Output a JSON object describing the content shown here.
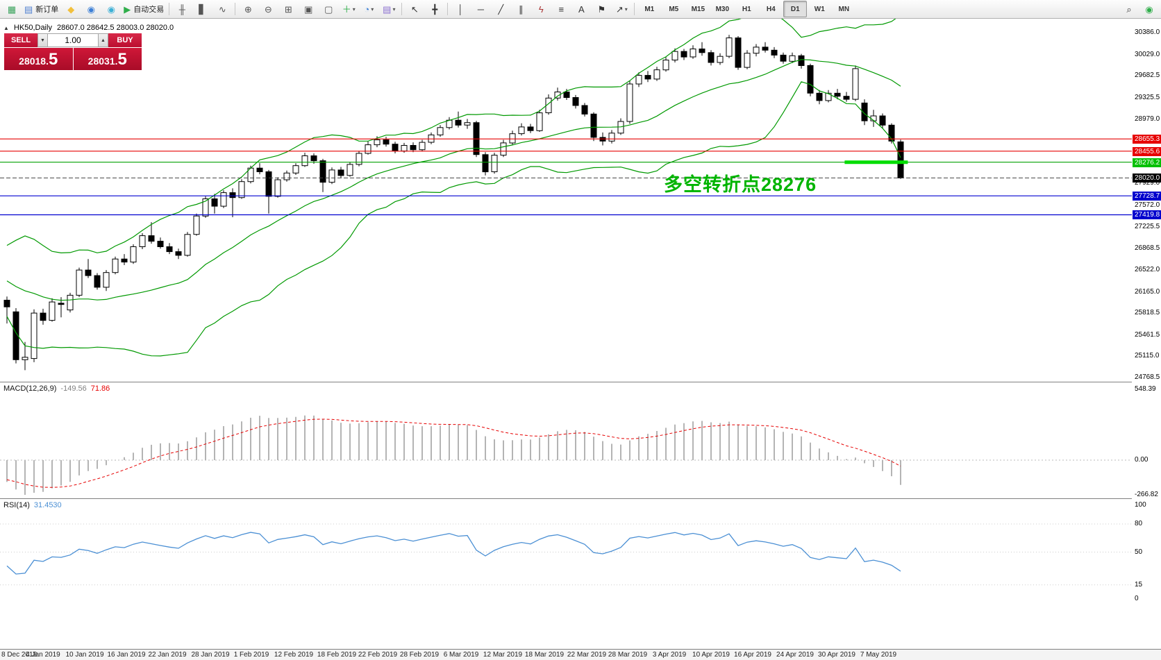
{
  "toolbar": {
    "buttons": [
      {
        "name": "terminal-chart-button",
        "glyph": "▦",
        "color": "#3aa35c"
      },
      {
        "name": "new-order-button",
        "glyph": "▤",
        "color": "#4f7fd0",
        "label": "新订单"
      },
      {
        "name": "metaeditor-button",
        "glyph": "◆",
        "color": "#f2c03c"
      },
      {
        "name": "data-window-button",
        "glyph": "◉",
        "color": "#3c7fd6"
      },
      {
        "name": "navigator-button",
        "glyph": "◉",
        "color": "#3cb0d6"
      },
      {
        "name": "autotrading-button",
        "glyph": "▶",
        "color": "#2fae4a",
        "label": "自动交易"
      },
      {
        "type": "sep"
      },
      {
        "name": "bar-chart-button",
        "glyph": "╫",
        "color": "#555555"
      },
      {
        "name": "candlestick-chart-button",
        "glyph": "▋",
        "color": "#555555"
      },
      {
        "name": "line-chart-button",
        "glyph": "∿",
        "color": "#555555"
      },
      {
        "type": "sep"
      },
      {
        "name": "zoom-in-button",
        "glyph": "⊕",
        "color": "#555555"
      },
      {
        "name": "zoom-out-button",
        "glyph": "⊖",
        "color": "#555555"
      },
      {
        "name": "grid-button",
        "glyph": "⊞",
        "color": "#555555"
      },
      {
        "name": "tile-windows-button",
        "glyph": "▣",
        "color": "#555555"
      },
      {
        "name": "cascade-windows-button",
        "glyph": "▢",
        "color": "#555555"
      },
      {
        "name": "indicators-button",
        "glyph": "＋",
        "color": "#2fae4a",
        "caret": true
      },
      {
        "name": "periods-button",
        "glyph": "◔",
        "color": "#3c7fd6",
        "caret": true
      },
      {
        "name": "templates-button",
        "glyph": "▤",
        "color": "#8a6fd0",
        "caret": true
      },
      {
        "type": "sep"
      },
      {
        "name": "cursor-button",
        "glyph": "↖",
        "color": "#333333"
      },
      {
        "name": "crosshair-button",
        "glyph": "╋",
        "color": "#333333"
      },
      {
        "type": "sep"
      },
      {
        "name": "vertical-line-button",
        "glyph": "│",
        "color": "#333333"
      },
      {
        "name": "horizontal-line-button",
        "glyph": "─",
        "color": "#333333"
      },
      {
        "name": "trendline-button",
        "glyph": "╱",
        "color": "#333333"
      },
      {
        "name": "channel-button",
        "glyph": "∥",
        "color": "#333333"
      },
      {
        "name": "fibonacci-button",
        "glyph": "ϟ",
        "color": "#aa3333"
      },
      {
        "name": "shapes-button",
        "glyph": "≡",
        "color": "#333333"
      },
      {
        "name": "text-button",
        "glyph": "A",
        "color": "#333333"
      },
      {
        "name": "label-button",
        "glyph": "⚑",
        "color": "#333333"
      },
      {
        "name": "arrows-button",
        "glyph": "↗",
        "color": "#333333",
        "caret": true
      },
      {
        "type": "sep"
      }
    ],
    "timeframes": [
      "M1",
      "M5",
      "M15",
      "M30",
      "H1",
      "H4",
      "D1",
      "W1",
      "MN"
    ],
    "active_timeframe": "D1",
    "right_buttons": [
      {
        "name": "search-button",
        "glyph": "⌕",
        "color": "#333333"
      },
      {
        "name": "community-button",
        "glyph": "◉",
        "color": "#2fae4a"
      }
    ]
  },
  "chart": {
    "symbol_period": "HK50,Daily",
    "ohlc": "28607.0 28642.5 28003.0 28020.0"
  },
  "one_click": {
    "collapse_glyph": "▲",
    "sell_label": "SELL",
    "buy_label": "BUY",
    "volume": "1.00",
    "vol_down_glyph": "▼",
    "vol_up_glyph": "▲",
    "sell_price_main": "28018.",
    "sell_price_big": "5",
    "buy_price_main": "28031.",
    "buy_price_big": "5"
  },
  "annotation": {
    "text": "多空转折点28276",
    "color": "#00b400"
  },
  "chart_data": {
    "type": "candlestick",
    "symbol": "HK50",
    "period": "Daily",
    "last_bar_ohlc": [
      28607.0,
      28642.5,
      28003.0,
      28020.0
    ],
    "candle_up_color": "#ffffff",
    "candle_down_color": "#000000",
    "bollinger_color": "#009900",
    "macd_histogram_color": "#b4b4b4",
    "macd_signal_color": "#e60000",
    "rsi_color": "#4a8fd4",
    "candles": [
      [
        26030,
        26090,
        25650,
        25920
      ],
      [
        25840,
        25900,
        25000,
        25060
      ],
      [
        25060,
        25350,
        24890,
        25100
      ],
      [
        25080,
        25880,
        25020,
        25820
      ],
      [
        25820,
        25890,
        25630,
        25700
      ],
      [
        25700,
        26060,
        25680,
        26000
      ],
      [
        25980,
        26080,
        25750,
        25960
      ],
      [
        25870,
        26150,
        25830,
        26110
      ],
      [
        26110,
        26560,
        26080,
        26520
      ],
      [
        26520,
        26700,
        26390,
        26430
      ],
      [
        26430,
        26470,
        26200,
        26240
      ],
      [
        26240,
        26520,
        26180,
        26480
      ],
      [
        26480,
        26740,
        26450,
        26700
      ],
      [
        26700,
        26780,
        26600,
        26650
      ],
      [
        26650,
        26940,
        26620,
        26900
      ],
      [
        26900,
        27120,
        26860,
        27080
      ],
      [
        27080,
        27300,
        26950,
        26990
      ],
      [
        26990,
        27050,
        26870,
        26900
      ],
      [
        26900,
        26960,
        26780,
        26820
      ],
      [
        26820,
        26870,
        26700,
        26760
      ],
      [
        26760,
        27140,
        26740,
        27100
      ],
      [
        27100,
        27440,
        27080,
        27400
      ],
      [
        27400,
        27720,
        27370,
        27680
      ],
      [
        27680,
        27760,
        27440,
        27560
      ],
      [
        27560,
        27820,
        27530,
        27780
      ],
      [
        27780,
        27850,
        27380,
        27700
      ],
      [
        27700,
        28000,
        27680,
        27960
      ],
      [
        27960,
        28220,
        27930,
        28180
      ],
      [
        28180,
        28260,
        28080,
        28120
      ],
      [
        28120,
        28150,
        27440,
        27720
      ],
      [
        27720,
        28030,
        27700,
        27990
      ],
      [
        27990,
        28140,
        27960,
        28100
      ],
      [
        28100,
        28260,
        28070,
        28220
      ],
      [
        28220,
        28430,
        28200,
        28380
      ],
      [
        28380,
        28420,
        28250,
        28300
      ],
      [
        28300,
        28330,
        27790,
        27950
      ],
      [
        27950,
        28190,
        27920,
        28150
      ],
      [
        28150,
        28200,
        28020,
        28060
      ],
      [
        28060,
        28280,
        28040,
        28240
      ],
      [
        28240,
        28460,
        28210,
        28420
      ],
      [
        28420,
        28620,
        28400,
        28560
      ],
      [
        28560,
        28700,
        28520,
        28640
      ],
      [
        28640,
        28690,
        28530,
        28570
      ],
      [
        28570,
        28610,
        28420,
        28460
      ],
      [
        28460,
        28590,
        28430,
        28550
      ],
      [
        28550,
        28600,
        28440,
        28480
      ],
      [
        28480,
        28640,
        28450,
        28600
      ],
      [
        28600,
        28760,
        28570,
        28720
      ],
      [
        28720,
        28880,
        28690,
        28840
      ],
      [
        28840,
        29010,
        28810,
        28960
      ],
      [
        28960,
        29100,
        28840,
        28880
      ],
      [
        28880,
        28980,
        28820,
        28920
      ],
      [
        28920,
        28950,
        28360,
        28400
      ],
      [
        28400,
        28440,
        28060,
        28120
      ],
      [
        28120,
        28430,
        28090,
        28390
      ],
      [
        28390,
        28640,
        28360,
        28590
      ],
      [
        28590,
        28790,
        28560,
        28740
      ],
      [
        28740,
        28910,
        28710,
        28850
      ],
      [
        28850,
        28900,
        28750,
        28790
      ],
      [
        28790,
        29130,
        28770,
        29080
      ],
      [
        29080,
        29380,
        29050,
        29320
      ],
      [
        29320,
        29490,
        29280,
        29420
      ],
      [
        29420,
        29470,
        29290,
        29330
      ],
      [
        29330,
        29370,
        29150,
        29200
      ],
      [
        29200,
        29240,
        29020,
        29060
      ],
      [
        29060,
        29090,
        28620,
        28680
      ],
      [
        28680,
        28760,
        28550,
        28620
      ],
      [
        28620,
        28800,
        28580,
        28750
      ],
      [
        28750,
        28990,
        28720,
        28940
      ],
      [
        28940,
        29600,
        28900,
        29550
      ],
      [
        29550,
        29740,
        29500,
        29690
      ],
      [
        29690,
        29760,
        29580,
        29630
      ],
      [
        29630,
        29830,
        29600,
        29780
      ],
      [
        29780,
        29990,
        29750,
        29940
      ],
      [
        29940,
        30130,
        29900,
        30080
      ],
      [
        30080,
        30120,
        29940,
        29990
      ],
      [
        29990,
        30180,
        29960,
        30120
      ],
      [
        30120,
        30230,
        30010,
        30060
      ],
      [
        30060,
        30100,
        29850,
        29900
      ],
      [
        29900,
        30050,
        29860,
        30000
      ],
      [
        30000,
        30350,
        29970,
        30300
      ],
      [
        30300,
        30330,
        29780,
        29820
      ],
      [
        29820,
        30100,
        29790,
        30050
      ],
      [
        30050,
        30200,
        30000,
        30150
      ],
      [
        30150,
        30230,
        30060,
        30100
      ],
      [
        30100,
        30150,
        29970,
        30020
      ],
      [
        30020,
        30060,
        29880,
        29920
      ],
      [
        29920,
        30060,
        29890,
        30010
      ],
      [
        30010,
        30040,
        29800,
        29850
      ],
      [
        29850,
        29880,
        29350,
        29400
      ],
      [
        29400,
        29450,
        29220,
        29280
      ],
      [
        29280,
        29450,
        29250,
        29400
      ],
      [
        29400,
        29470,
        29300,
        29350
      ],
      [
        29350,
        29420,
        29260,
        29300
      ],
      [
        29300,
        29850,
        29270,
        29800
      ],
      [
        29240,
        29300,
        28880,
        28950
      ],
      [
        28950,
        29130,
        28850,
        29030
      ],
      [
        29030,
        29070,
        28820,
        28880
      ],
      [
        28880,
        28910,
        28580,
        28620
      ],
      [
        28607,
        28642.5,
        28003,
        28020
      ]
    ],
    "indicator_warmup_closes": [
      27050,
      26900,
      26500,
      26650,
      26850,
      26750,
      26300,
      26000,
      26200,
      26450,
      26550,
      26300,
      26000,
      26100,
      26400,
      26500,
      26300,
      26100,
      26000,
      26100
    ],
    "price_lines": [
      {
        "price": 28655.3,
        "color": "#e60000",
        "style": "solid",
        "axis_label": "28655.3",
        "axis_bg": "#e60000"
      },
      {
        "price": 28455.6,
        "color": "#e60000",
        "style": "solid",
        "axis_label": "28455.6",
        "axis_bg": "#e60000"
      },
      {
        "price": 28276.2,
        "color": "#00a000",
        "style": "solid",
        "axis_label": "28276.2",
        "axis_bg": "#00c000"
      },
      {
        "price": 28020.0,
        "color": "#444444",
        "style": "dash",
        "axis_label": "28020.0",
        "axis_bg": "#000000"
      },
      {
        "price": 27728.7,
        "color": "#0000d0",
        "style": "solid",
        "axis_label": "27728.7",
        "axis_bg": "#0000cd"
      },
      {
        "price": 27419.8,
        "color": "#0000d0",
        "style": "solid",
        "axis_label": "27419.8",
        "axis_bg": "#0000cd"
      }
    ],
    "highlight_segment": {
      "price": 28276.2,
      "from_index": 92.8,
      "to_index": 99.8,
      "color": "#00dd00",
      "width": 5
    },
    "y_axis_labels": [
      30386.0,
      30029.0,
      29682.5,
      29325.5,
      28979.0,
      27929.0,
      27572.0,
      27225.5,
      26868.5,
      26522.0,
      26165.0,
      25818.5,
      25461.5,
      25115.0,
      24768.5
    ],
    "date_ticks": [
      {
        "label": "8 Dec 2018",
        "i": -0.8
      },
      {
        "label": "4 Jan 2019",
        "i": 4
      },
      {
        "label": "10 Jan 2019",
        "i": 8.6
      },
      {
        "label": "16 Jan 2019",
        "i": 13.2
      },
      {
        "label": "22 Jan 2019",
        "i": 17.8
      },
      {
        "label": "28 Jan 2019",
        "i": 22.5
      },
      {
        "label": "1 Feb 2019",
        "i": 27.1
      },
      {
        "label": "12 Feb 2019",
        "i": 31.8
      },
      {
        "label": "18 Feb 2019",
        "i": 36.5
      },
      {
        "label": "22 Feb 2019",
        "i": 41.1
      },
      {
        "label": "28 Feb 2019",
        "i": 45.7
      },
      {
        "label": "6 Mar 2019",
        "i": 50.3
      },
      {
        "label": "12 Mar 2019",
        "i": 54.9
      },
      {
        "label": "18 Mar 2019",
        "i": 59.5
      },
      {
        "label": "22 Mar 2019",
        "i": 64.2
      },
      {
        "label": "28 Mar 2019",
        "i": 68.8
      },
      {
        "label": "3 Apr 2019",
        "i": 73.4
      },
      {
        "label": "10 Apr 2019",
        "i": 78
      },
      {
        "label": "16 Apr 2019",
        "i": 82.6
      },
      {
        "label": "24 Apr 2019",
        "i": 87.3
      },
      {
        "label": "30 Apr 2019",
        "i": 91.9
      },
      {
        "label": "7 May 2019",
        "i": 96.5
      }
    ],
    "macd": {
      "params_label": "MACD(12,26,9)",
      "value_label": "-149.56",
      "signal_label": "71.86",
      "axis_labels": [
        "548.39",
        "0.00",
        "-266.82"
      ]
    },
    "rsi": {
      "params_label": "RSI(14)",
      "value_label": "31.4530",
      "axis_labels": [
        "100",
        "80",
        "50",
        "15",
        "0"
      ],
      "level_values": [
        80,
        50,
        15
      ]
    }
  }
}
